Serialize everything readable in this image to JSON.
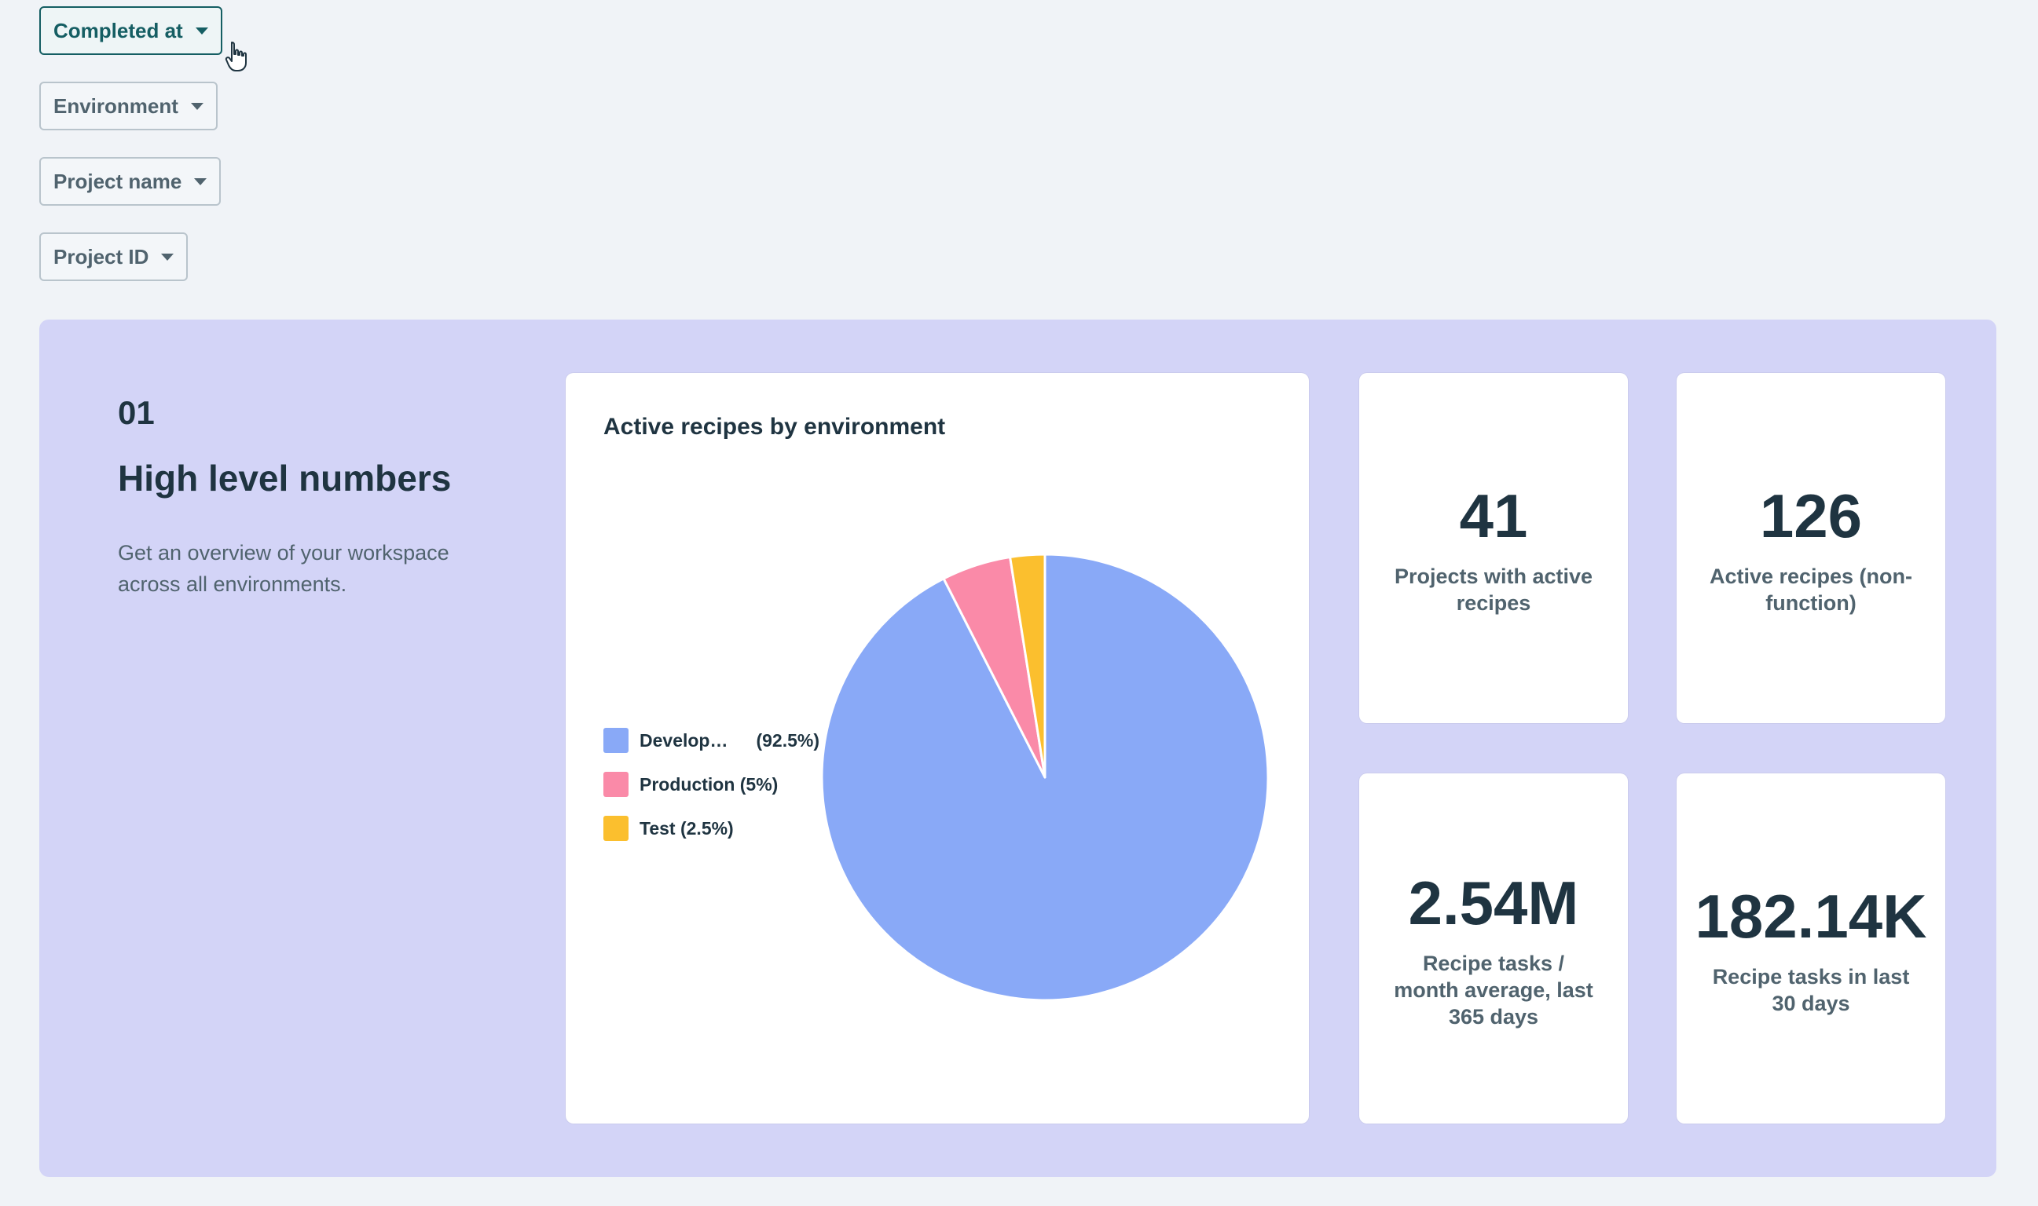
{
  "filters": [
    {
      "label": "Completed at",
      "active": true
    },
    {
      "label": "Environment",
      "active": false
    },
    {
      "label": "Project name",
      "active": false
    },
    {
      "label": "Project ID",
      "active": false
    }
  ],
  "section": {
    "number": "01",
    "title": "High level numbers",
    "description": "Get an overview of your workspace across all environments."
  },
  "chart_data": {
    "type": "pie",
    "title": "Active recipes by environment",
    "categories": [
      "Develop…",
      "Production",
      "Test"
    ],
    "values": [
      92.5,
      5,
      2.5
    ],
    "legend_labels": [
      "Develop…",
      "Production (5%)",
      "Test (2.5%)"
    ],
    "legend_pct": [
      "(92.5%)",
      "",
      ""
    ],
    "colors": [
      "#89a9f7",
      "#fa8aa8",
      "#fbbf2e"
    ],
    "legend_position": "left"
  },
  "stats": [
    {
      "value": "41",
      "label": "Projects with active recipes"
    },
    {
      "value": "126",
      "label": "Active recipes (non-function)"
    },
    {
      "value": "2.54M",
      "label": "Recipe tasks / month average, last 365 days"
    },
    {
      "value": "182.14K",
      "label": "Recipe tasks in last 30 days"
    }
  ],
  "icons": {
    "cursor": "hand-pointer-icon",
    "caret": "chevron-down-icon"
  }
}
